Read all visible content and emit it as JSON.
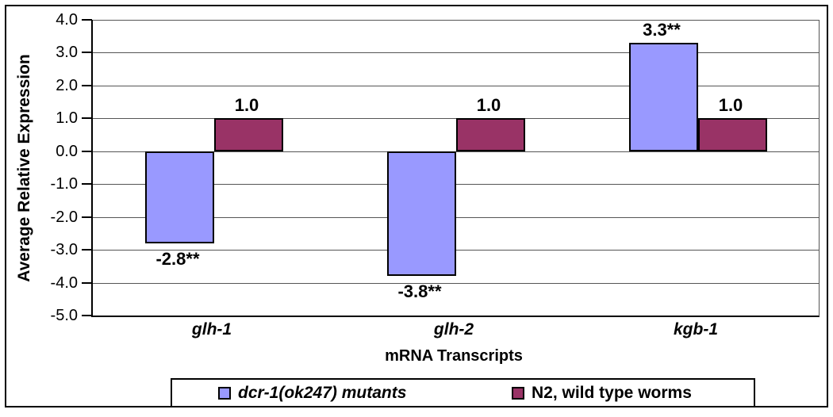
{
  "chart_data": {
    "type": "bar",
    "categories": [
      "glh-1",
      "glh-2",
      "kgb-1"
    ],
    "series": [
      {
        "name": "dcr-1(ok247) mutants",
        "color": "#9999FF",
        "values": [
          -2.8,
          -3.8,
          3.3
        ],
        "data_labels": [
          "-2.8**",
          "-3.8**",
          "3.3**"
        ]
      },
      {
        "name": "N2, wild type worms",
        "color": "#993366",
        "values": [
          1.0,
          1.0,
          1.0
        ],
        "data_labels": [
          "1.0",
          "1.0",
          "1.0"
        ]
      }
    ],
    "xlabel": "mRNA Transcripts",
    "ylabel": "Average Relative Expression",
    "ylim": [
      -5.0,
      4.0
    ],
    "ytick_step": 1.0,
    "ytick_labels": [
      "4.0",
      "3.0",
      "2.0",
      "1.0",
      "0.0",
      "-1.0",
      "-2.0",
      "-3.0",
      "-4.0",
      "-5.0"
    ],
    "grid": true,
    "legend_position": "bottom"
  },
  "colors": {
    "series_1": "#9999FF",
    "series_2": "#993366",
    "gridline": "#555555",
    "axis": "#000000",
    "background": "#FFFFFF"
  }
}
